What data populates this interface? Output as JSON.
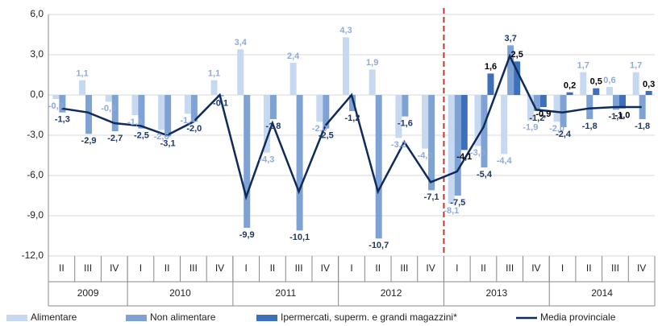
{
  "chart_data": {
    "type": "bar",
    "categories": [
      "II",
      "III",
      "IV",
      "I",
      "II",
      "III",
      "IV",
      "I",
      "II",
      "III",
      "IV",
      "I",
      "II",
      "III",
      "IV",
      "I",
      "II",
      "III",
      "IV",
      "I",
      "II",
      "III",
      "IV"
    ],
    "groups": [
      {
        "label": "2009",
        "span": 3
      },
      {
        "label": "2010",
        "span": 4
      },
      {
        "label": "2011",
        "span": 4
      },
      {
        "label": "2012",
        "span": 4
      },
      {
        "label": "2013",
        "span": 4
      },
      {
        "label": "2014",
        "span": 4
      }
    ],
    "ylim": [
      -12,
      6
    ],
    "yticks": [
      {
        "value": -12,
        "label": "-12,0"
      },
      {
        "value": -9,
        "label": "-9,0"
      },
      {
        "value": -6,
        "label": "-6,0"
      },
      {
        "value": -3,
        "label": "-3,0"
      },
      {
        "value": 0,
        "label": "0,0"
      },
      {
        "value": 3,
        "label": "3,0"
      },
      {
        "value": 6,
        "label": "6,0"
      }
    ],
    "grid": true,
    "series": [
      {
        "name": "Alimentare",
        "color": "#c6d9f1",
        "label_color": "#8eaadb",
        "values": [
          -0.3,
          1.1,
          -0.5,
          -1.5,
          -2.6,
          -1.4,
          1.1,
          3.4,
          -4.3,
          2.4,
          -2.0,
          4.3,
          1.9,
          -3.2,
          -4.0,
          -8.1,
          -3.8,
          -4.4,
          -1.9,
          -2.0,
          1.7,
          0.6,
          1.7
        ],
        "value_labels": [
          "-0,3",
          "1,1",
          "-0,5",
          "-1,5",
          "-2,6",
          "-1,4",
          "1,1",
          "3,4",
          "-4,3",
          "2,4",
          "-2,0",
          "4,3",
          "1,9",
          "-3,2",
          "-4,0",
          "-8,1",
          "-3,8",
          "-4,4",
          "-1,9",
          "-2,0",
          "1,7",
          "0,6",
          "1,7"
        ]
      },
      {
        "name": "Non alimentare",
        "color": "#7ea2d4",
        "label_color": "#1f3864",
        "values": [
          -1.3,
          -2.9,
          -2.7,
          -2.5,
          -3.1,
          -2.0,
          -0.1,
          -9.9,
          -1.8,
          -10.1,
          -2.5,
          -1.2,
          -10.7,
          -1.6,
          -7.1,
          -7.5,
          -5.4,
          3.7,
          -1.2,
          -2.4,
          -1.8,
          -1.1,
          -1.8
        ],
        "value_labels": [
          "-1,3",
          "-2,9",
          "-2,7",
          "-2,5",
          "-3,1",
          "-2,0",
          "-0,1",
          "-9,9",
          "-1,8",
          "-10,1",
          "-2,5",
          "-1,2",
          "-10,7",
          "-1,6",
          "-7,1",
          "-7,5",
          "-5,4",
          "3,7",
          "-1,2",
          "-2,4",
          "-1,8",
          "-1,1",
          "-1,8"
        ]
      },
      {
        "name": "Ipermercati, superm. e grandi magazzini*",
        "color": "#3e6fba",
        "label_color": "#000000",
        "values": [
          null,
          null,
          null,
          null,
          null,
          null,
          null,
          null,
          null,
          null,
          null,
          null,
          null,
          null,
          null,
          -4.1,
          1.6,
          2.5,
          -0.9,
          0.2,
          0.5,
          -1.0,
          0.3
        ],
        "value_labels": [
          null,
          null,
          null,
          null,
          null,
          null,
          null,
          null,
          null,
          null,
          null,
          null,
          null,
          null,
          null,
          "-4,1",
          "1,6",
          "2,5",
          "-0,9",
          "0,2",
          "0,5",
          "-1,0",
          "0,3"
        ]
      },
      {
        "name": "Media provinciale",
        "color": "#0f2b5b",
        "type": "line",
        "values": [
          -1.0,
          -1.3,
          -2.1,
          -2.3,
          -3.0,
          -2.0,
          0.0,
          -7.6,
          -2.1,
          -7.2,
          -2.3,
          0.0,
          -7.2,
          -3.5,
          -6.5,
          -5.7,
          -2.4,
          2.9,
          -1.1,
          -1.3,
          -1.0,
          -0.9,
          -0.9
        ]
      }
    ]
  }
}
